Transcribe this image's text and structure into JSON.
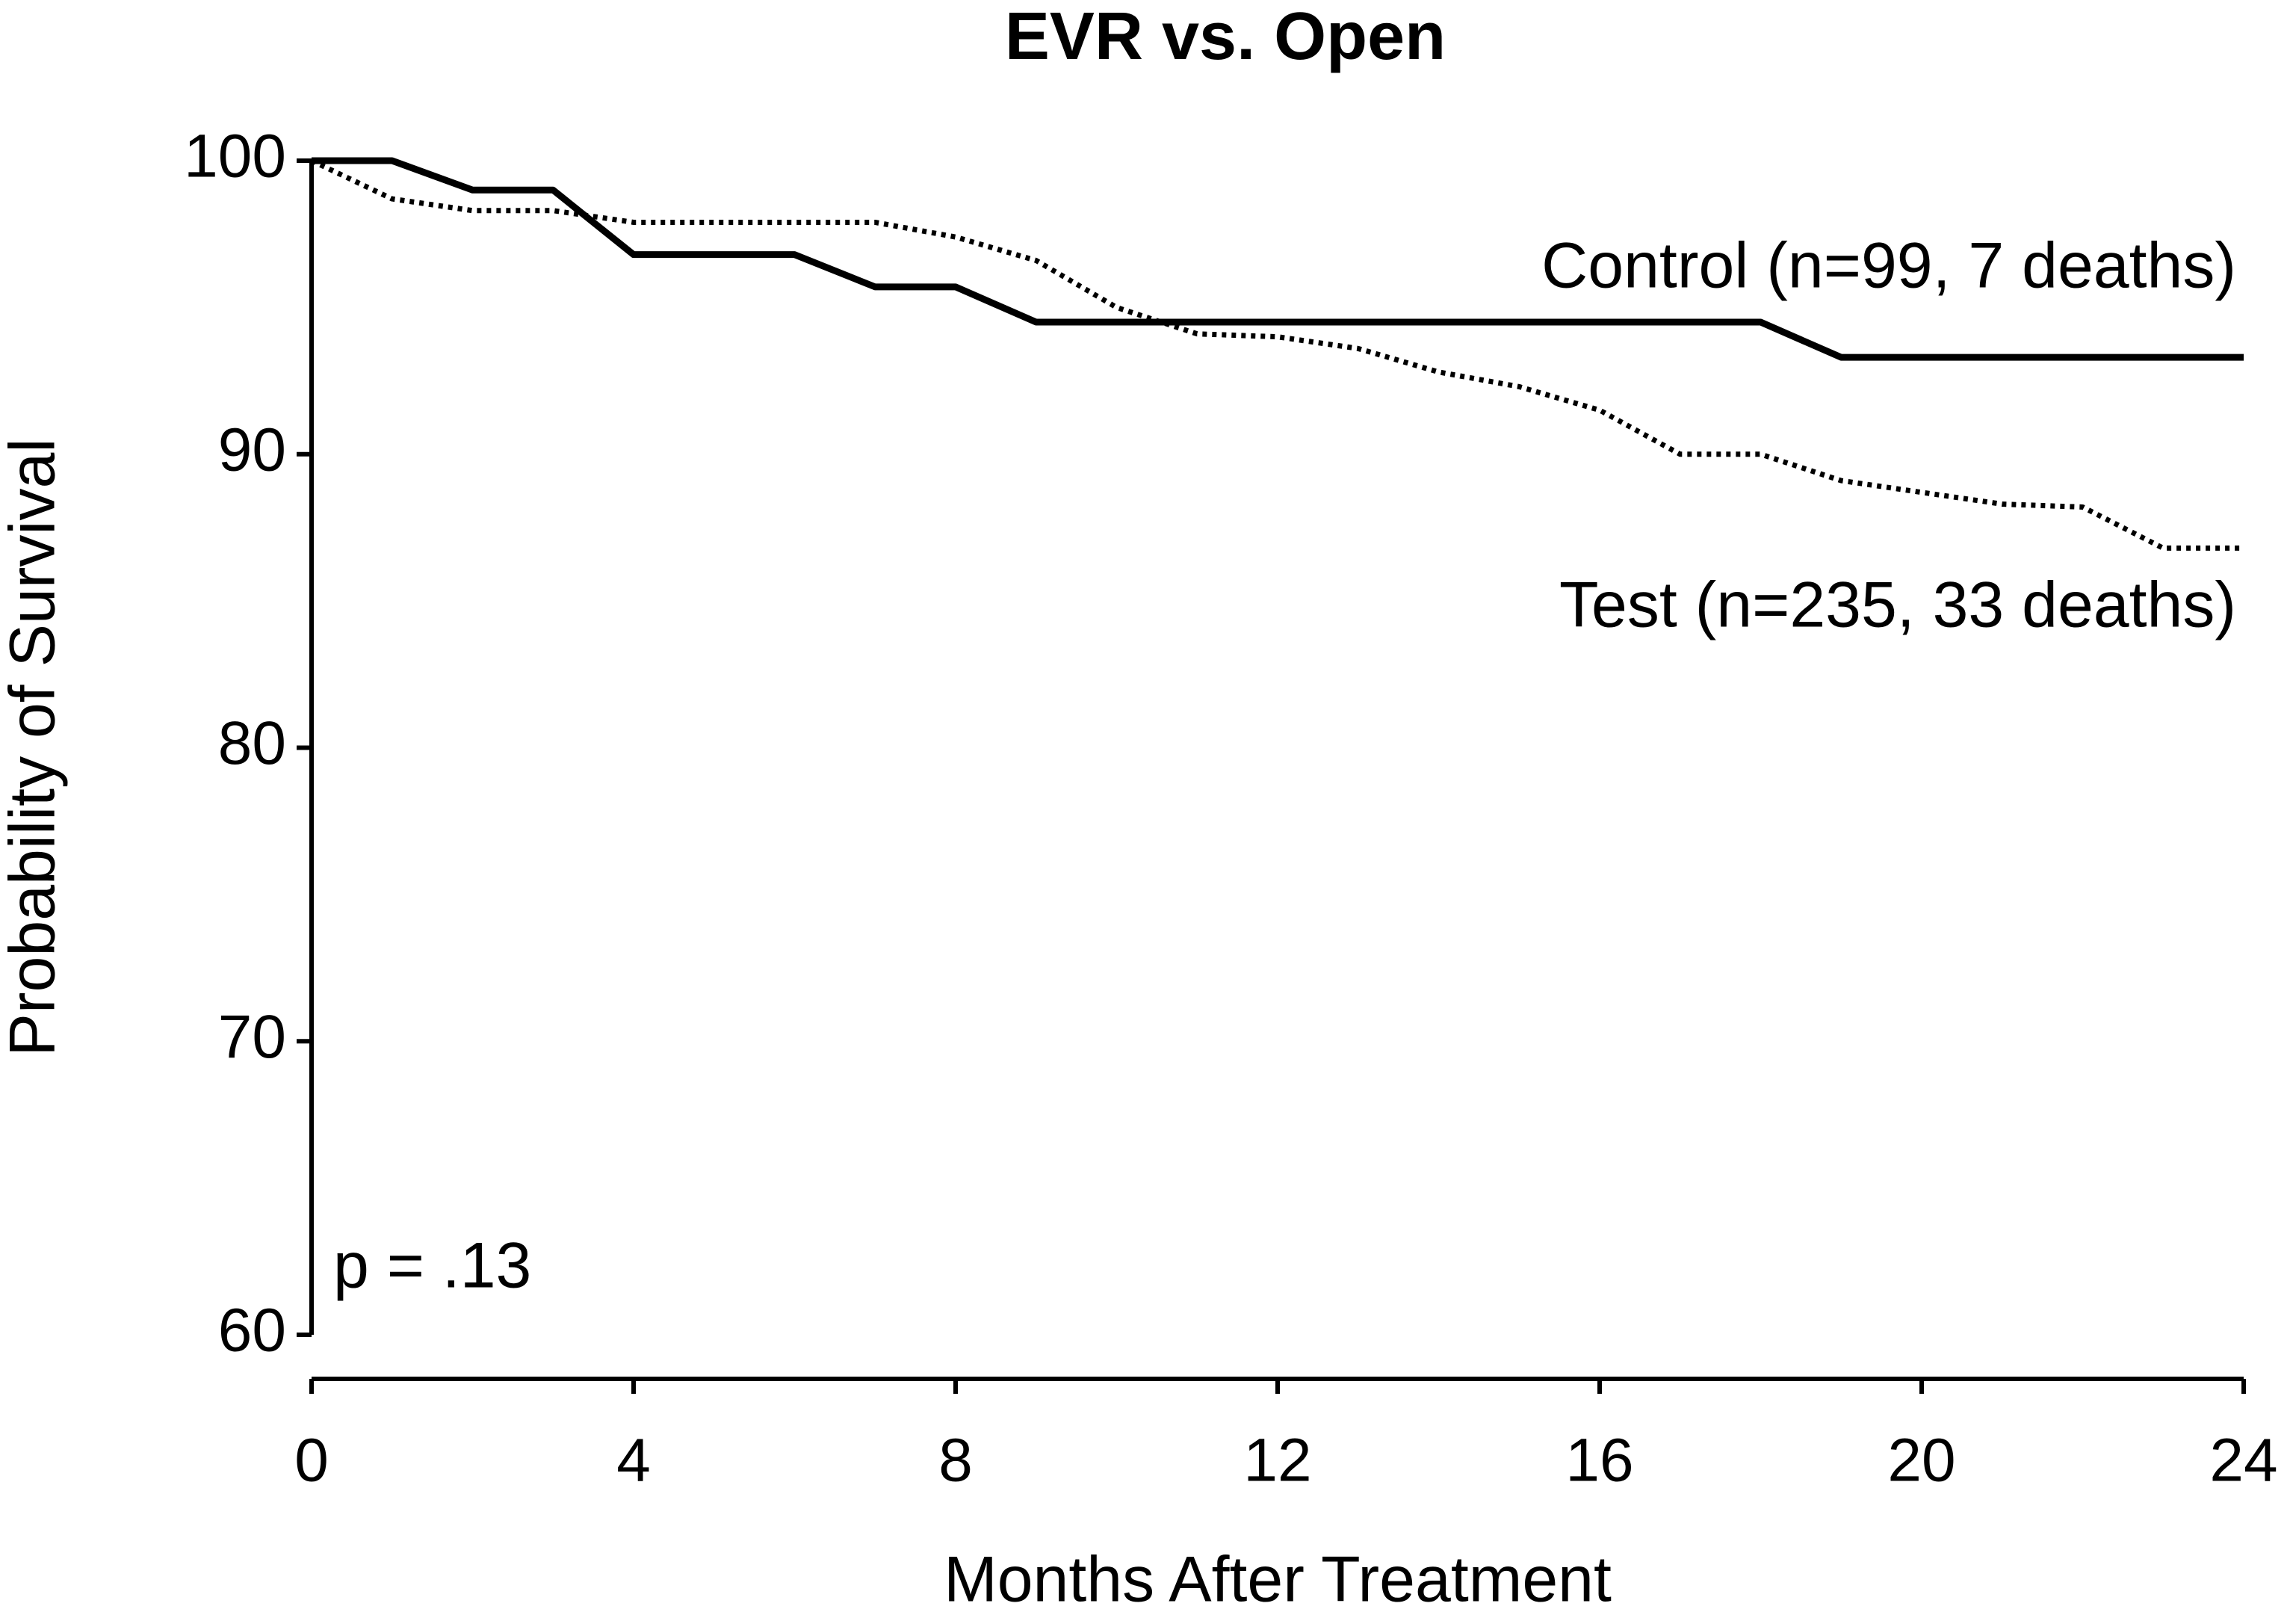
{
  "chart_data": {
    "type": "line",
    "title": "EVR vs. Open",
    "xlabel": "Months After Treatment",
    "ylabel": "Probability of Survival",
    "xlim": [
      0,
      24
    ],
    "xticks": [
      0,
      4,
      8,
      12,
      16,
      20,
      24
    ],
    "ylim": [
      60,
      100
    ],
    "yticks": [
      60,
      70,
      80,
      90,
      100
    ],
    "series": [
      {
        "name": "Control (n=99, 7 deaths)",
        "color": "#000000",
        "style": "solid",
        "x": [
          0,
          1,
          2,
          3,
          4,
          6,
          7,
          8,
          9,
          18,
          19,
          24
        ],
        "values": [
          100,
          100,
          99,
          99,
          96.8,
          96.8,
          95.7,
          95.7,
          94.5,
          94.5,
          93.3,
          93.3
        ]
      },
      {
        "name": "Test (n=235, 33 deaths)",
        "color": "#000000",
        "style": "dotted",
        "x": [
          0,
          1,
          2,
          3,
          4,
          6,
          7,
          8,
          9,
          10,
          11,
          12,
          13,
          14,
          15,
          16,
          17,
          18,
          19,
          20,
          21,
          22,
          23,
          24
        ],
        "values": [
          100,
          98.7,
          98.3,
          98.3,
          97.9,
          97.9,
          97.9,
          97.4,
          96.6,
          95,
          94.1,
          94,
          93.6,
          92.8,
          92.3,
          91.5,
          90,
          90,
          89.1,
          88.7,
          88.3,
          88.2,
          86.8,
          86.8
        ]
      }
    ],
    "annotations": [
      "p = .13"
    ]
  }
}
